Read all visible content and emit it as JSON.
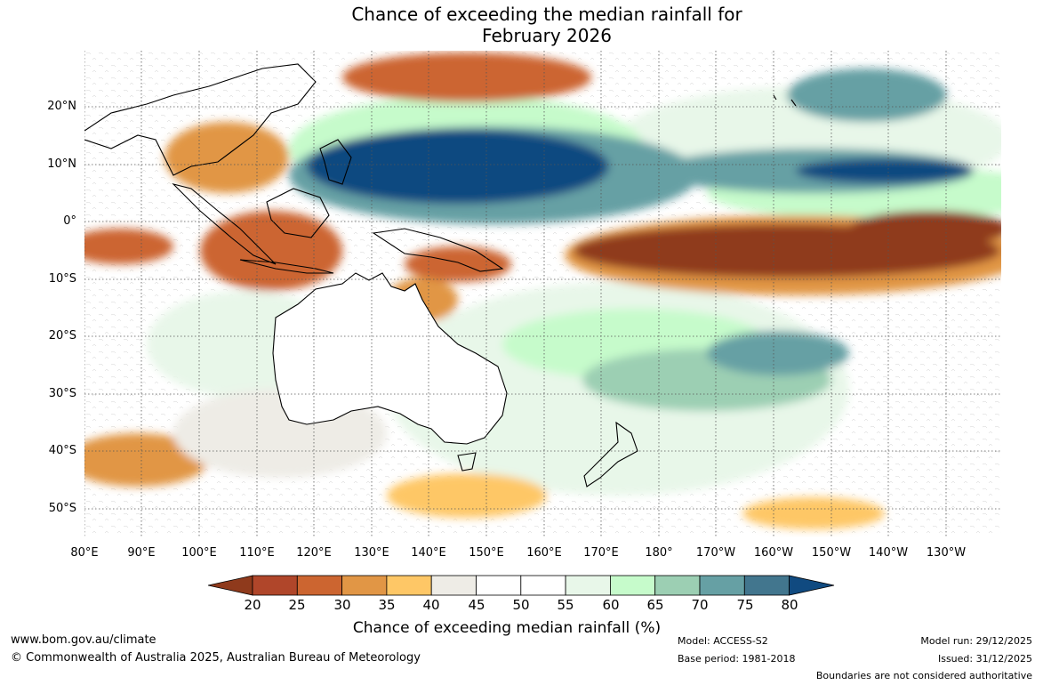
{
  "title": {
    "line1": "Chance of exceeding the median rainfall for",
    "line2": "February 2026"
  },
  "latitude_labels": [
    "20°N",
    "10°N",
    "0°",
    "10°S",
    "20°S",
    "30°S",
    "40°S",
    "50°S"
  ],
  "longitude_labels": [
    "80°E",
    "90°E",
    "100°E",
    "110°E",
    "120°E",
    "130°E",
    "140°E",
    "150°E",
    "160°E",
    "170°E",
    "180°",
    "170°W",
    "160°W",
    "150°W",
    "140°W",
    "130°W"
  ],
  "colorbar": {
    "ticks": [
      "20",
      "25",
      "30",
      "35",
      "40",
      "45",
      "50",
      "55",
      "60",
      "65",
      "70",
      "75",
      "80"
    ],
    "colors": [
      "#8f3a1c",
      "#b0462a",
      "#cc6530",
      "#e19645",
      "#fec766",
      "#eeece6",
      "#ffffff",
      "#ffffff",
      "#e8f7e9",
      "#c6fbcb",
      "#9ccfb3",
      "#66a0a4",
      "#42768e",
      "#104a80"
    ],
    "label": "Chance of exceeding median rainfall (%)"
  },
  "footer": {
    "website": "www.bom.gov.au/climate",
    "copyright": "© Commonwealth of Australia 2025, Australian Bureau of Meteorology",
    "model": "Model: ACCESS-S2",
    "base_period": "Base period: 1981-2018",
    "model_run": "Model run: 29/12/2025",
    "issued": "Issued: 31/12/2025",
    "disclaimer": "Boundaries are not considered authoritative"
  }
}
